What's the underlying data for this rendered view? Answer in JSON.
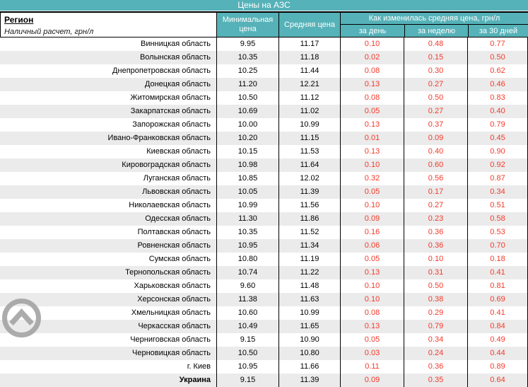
{
  "title": "Цены на АЗС",
  "header": {
    "region_label": "Регион",
    "region_sub": "Наличный расчет, грн/л",
    "min_price": "Минимальная цена",
    "avg_price": "Средняя цена",
    "change_group": "Как изменилась средняя цена, грн/л",
    "change_day": "за день",
    "change_week": "за неделю",
    "change_month": "за 30 дней"
  },
  "colors": {
    "teal": "#55b2b8",
    "change_red": "#f5392a",
    "stripe_gray": "#ebebeb",
    "border_black": "#000000",
    "icon_gray": "#a0a0a0"
  },
  "icons": {
    "scroll_top": "chevron-up-circle"
  },
  "rows": [
    {
      "region": "Винницкая область",
      "min": "9.95",
      "avg": "11.17",
      "day": "0.10",
      "week": "0.48",
      "month": "0.77"
    },
    {
      "region": "Волынская область",
      "min": "10.35",
      "avg": "11.18",
      "day": "0.02",
      "week": "0.15",
      "month": "0.50"
    },
    {
      "region": "Днепропетровская область",
      "min": "10.25",
      "avg": "11.44",
      "day": "0.08",
      "week": "0.30",
      "month": "0.62"
    },
    {
      "region": "Донецкая область",
      "min": "11.20",
      "avg": "12.21",
      "day": "0.13",
      "week": "0.27",
      "month": "0.46"
    },
    {
      "region": "Житомирская область",
      "min": "10.50",
      "avg": "11.12",
      "day": "0.08",
      "week": "0.50",
      "month": "0.83"
    },
    {
      "region": "Закарпатская область",
      "min": "10.69",
      "avg": "11.02",
      "day": "0.05",
      "week": "0.27",
      "month": "0.40"
    },
    {
      "region": "Запорожская область",
      "min": "10.00",
      "avg": "10.99",
      "day": "0.13",
      "week": "0.37",
      "month": "0.79"
    },
    {
      "region": "Ивано-Франковская область",
      "min": "10.20",
      "avg": "11.15",
      "day": "0.01",
      "week": "0.09",
      "month": "0.45"
    },
    {
      "region": "Киевская область",
      "min": "10.15",
      "avg": "11.53",
      "day": "0.13",
      "week": "0.40",
      "month": "0.90"
    },
    {
      "region": "Кировоградская область",
      "min": "10.98",
      "avg": "11.64",
      "day": "0.10",
      "week": "0.60",
      "month": "0.92"
    },
    {
      "region": "Луганская область",
      "min": "10.85",
      "avg": "12.02",
      "day": "0.32",
      "week": "0.56",
      "month": "0.87"
    },
    {
      "region": "Львовская область",
      "min": "10.05",
      "avg": "11.39",
      "day": "0.05",
      "week": "0.17",
      "month": "0.34"
    },
    {
      "region": "Николаевская область",
      "min": "10.99",
      "avg": "11.56",
      "day": "0.10",
      "week": "0.27",
      "month": "0.51"
    },
    {
      "region": "Одесская область",
      "min": "11.30",
      "avg": "11.86",
      "day": "0.09",
      "week": "0.23",
      "month": "0.58"
    },
    {
      "region": "Полтавская область",
      "min": "10.35",
      "avg": "11.52",
      "day": "0.16",
      "week": "0.36",
      "month": "0.53"
    },
    {
      "region": "Ровненская область",
      "min": "10.95",
      "avg": "11.34",
      "day": "0.06",
      "week": "0.36",
      "month": "0.70"
    },
    {
      "region": "Сумская область",
      "min": "10.80",
      "avg": "11.19",
      "day": "0.05",
      "week": "0.10",
      "month": "0.18"
    },
    {
      "region": "Тернопольская область",
      "min": "10.74",
      "avg": "11.22",
      "day": "0.13",
      "week": "0.31",
      "month": "0.41"
    },
    {
      "region": "Харьковская область",
      "min": "9.60",
      "avg": "11.48",
      "day": "0.10",
      "week": "0.50",
      "month": "0.81"
    },
    {
      "region": "Херсонская область",
      "min": "11.38",
      "avg": "11.63",
      "day": "0.10",
      "week": "0.38",
      "month": "0.69"
    },
    {
      "region": "Хмельницкая область",
      "min": "10.60",
      "avg": "10.99",
      "day": "0.08",
      "week": "0.29",
      "month": "0.41"
    },
    {
      "region": "Черкасская область",
      "min": "10.49",
      "avg": "11.65",
      "day": "0.13",
      "week": "0.79",
      "month": "0.84"
    },
    {
      "region": "Черниговская область",
      "min": "9.15",
      "avg": "10.90",
      "day": "0.05",
      "week": "0.34",
      "month": "0.49"
    },
    {
      "region": "Черновицкая область",
      "min": "10.50",
      "avg": "10.80",
      "day": "0.03",
      "week": "0.24",
      "month": "0.44"
    },
    {
      "region": "г. Киев",
      "min": "10.95",
      "avg": "11.66",
      "day": "0.11",
      "week": "0.36",
      "month": "0.89"
    },
    {
      "region": "Украина",
      "min": "9.15",
      "avg": "11.39",
      "day": "0.09",
      "week": "0.35",
      "month": "0.64",
      "bold": true
    }
  ]
}
